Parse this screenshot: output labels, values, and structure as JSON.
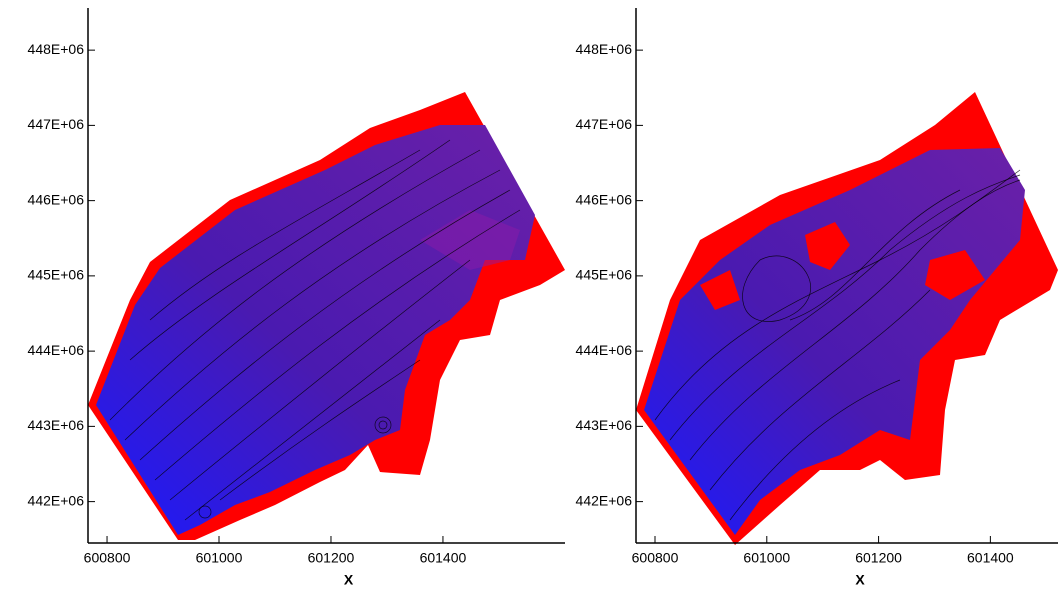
{
  "chart_data": [
    {
      "type": "contour",
      "xlabel": "X",
      "xlim": [
        600766,
        601618
      ],
      "xticks": [
        600800,
        601000,
        601200,
        601400
      ],
      "ylim": [
        441450000,
        448560000
      ],
      "yticks": [
        {
          "value": 442000000,
          "label": "442E+06"
        },
        {
          "value": 443000000,
          "label": "443E+06"
        },
        {
          "value": 444000000,
          "label": "444E+06"
        },
        {
          "value": 445000000,
          "label": "445E+06"
        },
        {
          "value": 446000000,
          "label": "446E+06"
        },
        {
          "value": 447000000,
          "label": "447E+06"
        },
        {
          "value": 448000000,
          "label": "448E+06"
        }
      ]
    },
    {
      "type": "contour",
      "xlabel": "X",
      "xlim": [
        600766,
        601521
      ],
      "xticks": [
        600800,
        601000,
        601200,
        601400
      ],
      "ylim": [
        441450000,
        448560000
      ],
      "yticks": [
        {
          "value": 442000000,
          "label": "442E+06"
        },
        {
          "value": 443000000,
          "label": "443E+06"
        },
        {
          "value": 444000000,
          "label": "444E+06"
        },
        {
          "value": 445000000,
          "label": "445E+06"
        },
        {
          "value": 446000000,
          "label": "446E+06"
        },
        {
          "value": 447000000,
          "label": "447E+06"
        },
        {
          "value": 448000000,
          "label": "448E+06"
        }
      ]
    }
  ]
}
